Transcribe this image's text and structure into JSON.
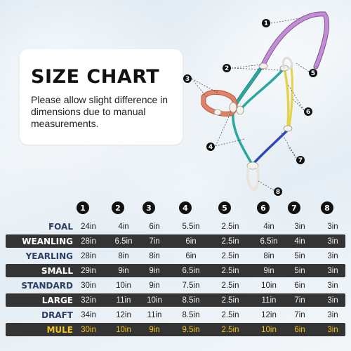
{
  "heading": "SIZE CHART",
  "note": "Please allow slight difference in dimensions due to manual measurements.",
  "diagram_markers": [
    "1",
    "2",
    "3",
    "4",
    "5",
    "6",
    "7",
    "8"
  ],
  "columns": [
    "1",
    "2",
    "3",
    "4",
    "5",
    "6",
    "7",
    "8"
  ],
  "rows": [
    {
      "label": "FOAL",
      "values": [
        "24in",
        "4in",
        "6in",
        "5.5in",
        "2.5in",
        "4in",
        "3in",
        "3in"
      ]
    },
    {
      "label": "WEANLING",
      "values": [
        "28in",
        "6.5in",
        "7in",
        "6in",
        "2.5in",
        "6.5in",
        "4in",
        "3in"
      ]
    },
    {
      "label": "YEARLING",
      "values": [
        "28in",
        "8in",
        "8in",
        "6in",
        "2.5in",
        "8in",
        "5in",
        "3in"
      ]
    },
    {
      "label": "SMALL",
      "values": [
        "29in",
        "9in",
        "9in",
        "6.5in",
        "2.5in",
        "9in",
        "5in",
        "3in"
      ]
    },
    {
      "label": "STANDARD",
      "values": [
        "30in",
        "10in",
        "9in",
        "7.5in",
        "2.5in",
        "10in",
        "6in",
        "3in"
      ]
    },
    {
      "label": "LARGE",
      "values": [
        "32in",
        "11in",
        "10in",
        "8.5in",
        "2.5in",
        "11in",
        "7in",
        "3in"
      ]
    },
    {
      "label": "DRAFT",
      "values": [
        "34in",
        "12in",
        "11in",
        "8.5in",
        "2.5in",
        "12in",
        "7in",
        "3in"
      ]
    },
    {
      "label": "MULE",
      "values": [
        "30in",
        "10in",
        "9in",
        "9.5in",
        "2.5in",
        "10in",
        "6in",
        "3in"
      ]
    }
  ],
  "colors": {
    "crown": "#c58bd8",
    "noseband": "#e0826a",
    "cheek": "#2aa8a0",
    "throat": "#e6d24a",
    "lead": "#2f49b8",
    "header_dark": "#343434",
    "label_blue": "#2b3e66",
    "mule_gold": "#f2c31b"
  }
}
